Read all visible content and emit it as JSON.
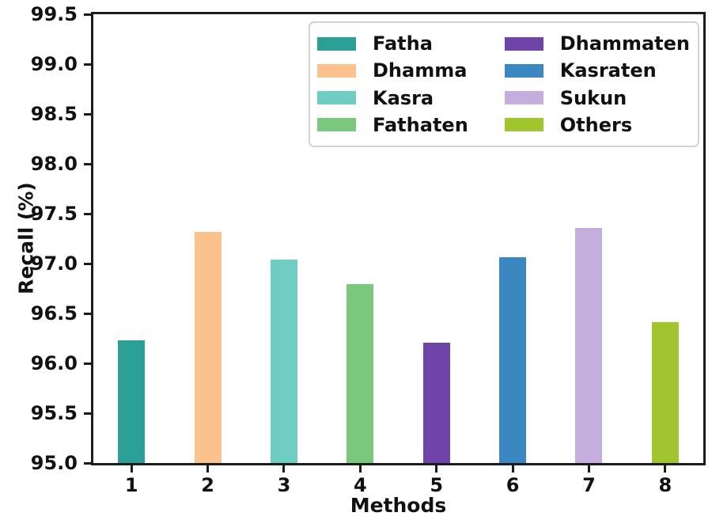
{
  "chart_data": {
    "type": "bar",
    "title": "",
    "xlabel": "Methods",
    "ylabel": "Recall (%)",
    "categories": [
      "1",
      "2",
      "3",
      "4",
      "5",
      "6",
      "7",
      "8"
    ],
    "series": [
      {
        "name": "Fatha",
        "category": "1",
        "value": 96.23,
        "color": "#2aa096"
      },
      {
        "name": "Dhamma",
        "category": "2",
        "value": 97.32,
        "color": "#fcc28d"
      },
      {
        "name": "Kasra",
        "category": "3",
        "value": 97.04,
        "color": "#6fcdc4"
      },
      {
        "name": "Fathaten",
        "category": "4",
        "value": 96.79,
        "color": "#79c87d"
      },
      {
        "name": "Dhammaten",
        "category": "5",
        "value": 96.21,
        "color": "#6f44a9"
      },
      {
        "name": "Kasraten",
        "category": "6",
        "value": 97.06,
        "color": "#3a87c1"
      },
      {
        "name": "Sukun",
        "category": "7",
        "value": 97.36,
        "color": "#c4aedd"
      },
      {
        "name": "Others",
        "category": "8",
        "value": 96.41,
        "color": "#a0c52e"
      }
    ],
    "ylim": [
      95.0,
      99.5
    ],
    "ytick_step": 0.5,
    "ytick_labels": [
      "95.0",
      "95.5",
      "96.0",
      "96.5",
      "97.0",
      "97.5",
      "98.0",
      "98.5",
      "99.0",
      "99.5"
    ],
    "grid": false,
    "legend_position": "upper right",
    "legend_columns": 2,
    "axis_color": "#1c1c1c",
    "text_color": "#111111"
  }
}
